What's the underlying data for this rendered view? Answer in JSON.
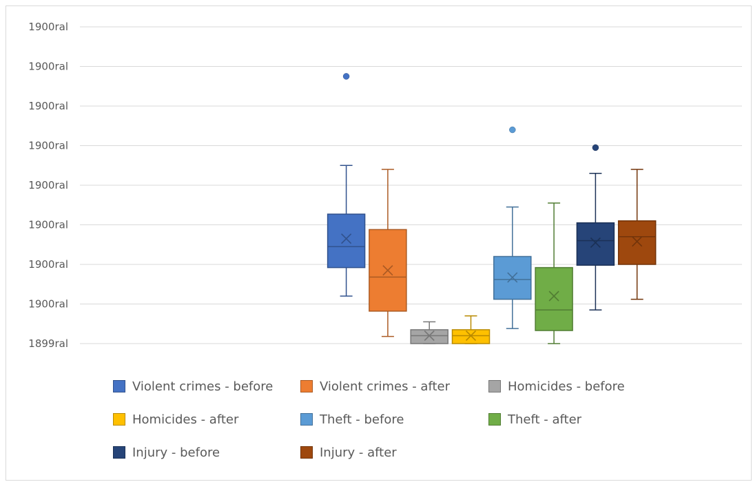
{
  "chart_data": {
    "type": "boxplot",
    "y_tick_labels": [
      "1900ral",
      "1900ral",
      "1900ral",
      "1900ral",
      "1900ral",
      "1900ral",
      "1900ral",
      "1900ral",
      "1899ral"
    ],
    "ylim": [
      0,
      8
    ],
    "grid": true,
    "legend_position": "bottom",
    "series": [
      {
        "name": "Violent crimes - before",
        "color": "#4472c4",
        "min": 1.2,
        "q1": 1.92,
        "median": 2.45,
        "q3": 3.27,
        "max": 4.5,
        "mean": 2.65,
        "outliers": [
          6.75
        ]
      },
      {
        "name": "Violent crimes - after",
        "color": "#ed7d31",
        "min": 0.18,
        "q1": 0.82,
        "median": 1.68,
        "q3": 2.88,
        "max": 4.4,
        "mean": 1.85,
        "outliers": []
      },
      {
        "name": "Homicides - before",
        "color": "#a5a5a5",
        "min": 0.0,
        "q1": 0.0,
        "median": 0.2,
        "q3": 0.35,
        "max": 0.55,
        "mean": 0.2,
        "outliers": []
      },
      {
        "name": "Homicides - after",
        "color": "#ffc000",
        "min": 0.0,
        "q1": 0.0,
        "median": 0.2,
        "q3": 0.35,
        "max": 0.7,
        "mean": 0.2,
        "outliers": []
      },
      {
        "name": "Theft - before",
        "color": "#5b9bd5",
        "min": 0.38,
        "q1": 1.12,
        "median": 1.62,
        "q3": 2.2,
        "max": 3.45,
        "mean": 1.67,
        "outliers": [
          5.4
        ]
      },
      {
        "name": "Theft - after",
        "color": "#70ad47",
        "min": 0.0,
        "q1": 0.33,
        "median": 0.85,
        "q3": 1.92,
        "max": 3.55,
        "mean": 1.2,
        "outliers": []
      },
      {
        "name": "Injury - before",
        "color": "#264478",
        "min": 0.85,
        "q1": 1.98,
        "median": 2.6,
        "q3": 3.05,
        "max": 4.3,
        "mean": 2.55,
        "outliers": [
          4.95
        ]
      },
      {
        "name": "Injury - after",
        "color": "#9e480e",
        "min": 1.12,
        "q1": 2.0,
        "median": 2.7,
        "q3": 3.1,
        "max": 4.4,
        "mean": 2.58,
        "outliers": []
      }
    ]
  }
}
